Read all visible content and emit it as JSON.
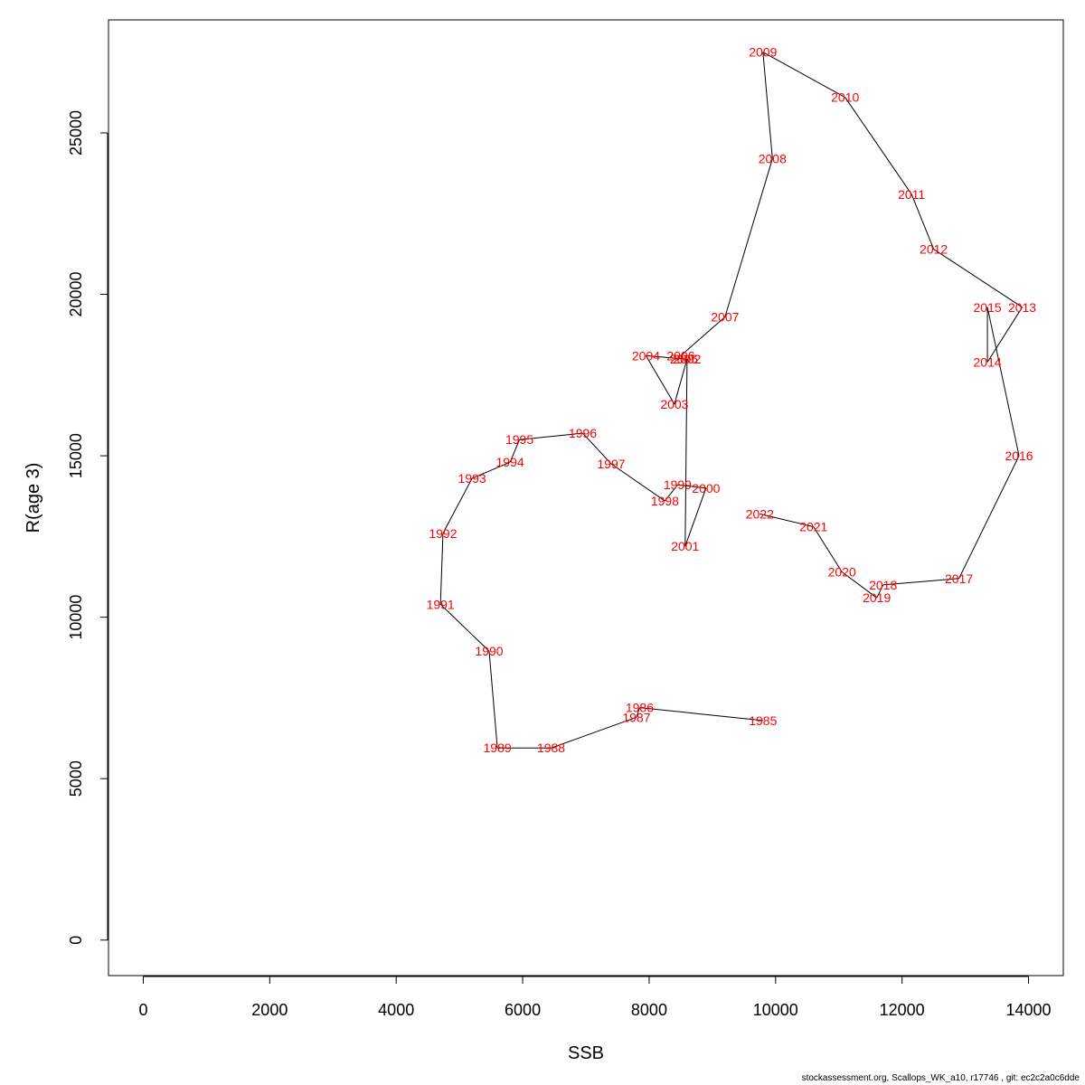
{
  "chart_data": {
    "type": "line",
    "xlabel": "SSB",
    "ylabel": "R(age 3)",
    "xlim": [
      -550,
      14550
    ],
    "ylim": [
      -1100,
      28500
    ],
    "x_ticks": [
      0,
      2000,
      4000,
      6000,
      8000,
      10000,
      12000,
      14000
    ],
    "y_ticks": [
      0,
      5000,
      10000,
      15000,
      20000,
      25000
    ],
    "grid": false,
    "points": [
      {
        "year": "1985",
        "x": 9800,
        "y": 6800
      },
      {
        "year": "1986",
        "x": 7850,
        "y": 7200
      },
      {
        "year": "1987",
        "x": 7800,
        "y": 6900
      },
      {
        "year": "1988",
        "x": 6450,
        "y": 5950
      },
      {
        "year": "1989",
        "x": 5600,
        "y": 5950
      },
      {
        "year": "1990",
        "x": 5470,
        "y": 8950
      },
      {
        "year": "1991",
        "x": 4700,
        "y": 10400
      },
      {
        "year": "1992",
        "x": 4740,
        "y": 12600
      },
      {
        "year": "1993",
        "x": 5200,
        "y": 14300
      },
      {
        "year": "1994",
        "x": 5800,
        "y": 14800
      },
      {
        "year": "1995",
        "x": 5950,
        "y": 15500
      },
      {
        "year": "1996",
        "x": 6950,
        "y": 15700
      },
      {
        "year": "1997",
        "x": 7400,
        "y": 14750
      },
      {
        "year": "1998",
        "x": 8250,
        "y": 13600
      },
      {
        "year": "1999",
        "x": 8450,
        "y": 14100
      },
      {
        "year": "2000",
        "x": 8900,
        "y": 14000
      },
      {
        "year": "2001",
        "x": 8570,
        "y": 12200
      },
      {
        "year": "2002",
        "x": 8600,
        "y": 18000
      },
      {
        "year": "2003",
        "x": 8400,
        "y": 16600
      },
      {
        "year": "2004",
        "x": 7950,
        "y": 18100
      },
      {
        "year": "2005",
        "x": 8550,
        "y": 18000
      },
      {
        "year": "2006",
        "x": 8500,
        "y": 18100
      },
      {
        "year": "2007",
        "x": 9200,
        "y": 19300
      },
      {
        "year": "2008",
        "x": 9950,
        "y": 24200
      },
      {
        "year": "2009",
        "x": 9800,
        "y": 27500
      },
      {
        "year": "2010",
        "x": 11100,
        "y": 26100
      },
      {
        "year": "2011",
        "x": 12150,
        "y": 23100
      },
      {
        "year": "2012",
        "x": 12500,
        "y": 21400
      },
      {
        "year": "2013",
        "x": 13900,
        "y": 19600
      },
      {
        "year": "2014",
        "x": 13350,
        "y": 17900
      },
      {
        "year": "2015",
        "x": 13350,
        "y": 19600
      },
      {
        "year": "2016",
        "x": 13850,
        "y": 15000
      },
      {
        "year": "2017",
        "x": 12900,
        "y": 11200
      },
      {
        "year": "2018",
        "x": 11700,
        "y": 11000
      },
      {
        "year": "2019",
        "x": 11600,
        "y": 10600
      },
      {
        "year": "2020",
        "x": 11050,
        "y": 11400
      },
      {
        "year": "2021",
        "x": 10600,
        "y": 12800
      },
      {
        "year": "2022",
        "x": 9750,
        "y": 13200
      }
    ]
  },
  "footer": {
    "text": "stockassessment.org, Scallops_WK_a10, r17746 , git: ec2c2a0c6dde"
  },
  "colors": {
    "label": "#ff0000",
    "line": "#000000",
    "axis": "#000000"
  }
}
